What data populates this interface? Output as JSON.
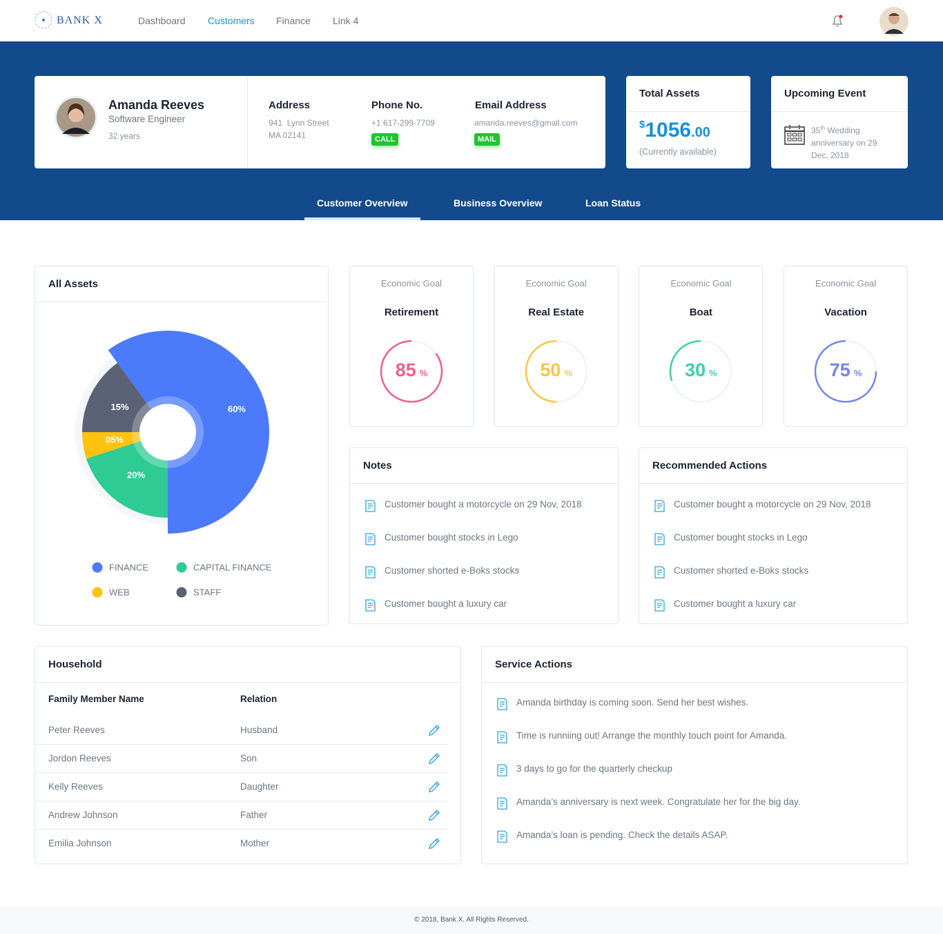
{
  "nav": {
    "brand": "BANK X",
    "links": [
      "Dashboard",
      "Customers",
      "Finance",
      "Link 4"
    ]
  },
  "profile": {
    "name": "Amanda Reeves",
    "role": "Software Engineer",
    "age": "32 years",
    "address": {
      "label": "Address",
      "lines": [
        "941  Lynn Street",
        "MA 02141"
      ]
    },
    "phone": {
      "label": "Phone No.",
      "value": "+1 617-299-7709",
      "button": "CALL"
    },
    "email": {
      "label": "Email Address",
      "value": "amanda.reeves@gmail.com",
      "button": "MAIL"
    }
  },
  "total_assets": {
    "title": "Total Assets",
    "currency": "$",
    "amount": "1056",
    "decimals": ".00",
    "note": "(Currently available)"
  },
  "upcoming_event": {
    "title": "Upcoming Event",
    "ordinal": "35",
    "suffix": "th",
    "text": "Wedding anniversary on 29 Dec, 2018"
  },
  "tabs": [
    "Customer Overview",
    "Business Overview",
    "Loan Status"
  ],
  "all_assets": {
    "title": "All Assets",
    "type": "pie",
    "categories": [
      "FINANCE",
      "CAPITAL FINANCE",
      "WEB",
      "STAFF"
    ],
    "values": [
      60,
      20,
      5,
      15
    ],
    "value_labels": [
      "60%",
      "20%",
      "05%",
      "15%"
    ],
    "colors": [
      "#4b7bfb",
      "#2ecb94",
      "#ffc20e",
      "#5b6275"
    ]
  },
  "goals": [
    {
      "caption": "Economic Goal",
      "name": "Retirement",
      "value": 85,
      "unit": "%",
      "color": "#ec5f8d"
    },
    {
      "caption": "Economic Goal",
      "name": "Real Estate",
      "value": 50,
      "unit": "%",
      "color": "#f7c646"
    },
    {
      "caption": "Economic Goal",
      "name": "Boat",
      "value": 30,
      "unit": "%",
      "color": "#3fcfa4"
    },
    {
      "caption": "Economic Goal",
      "name": "Vacation",
      "value": 75,
      "unit": "%",
      "color": "#7585e6"
    }
  ],
  "notes": {
    "title": "Notes",
    "items": [
      "Customer bought a motorcycle on 29 Nov, 2018",
      "Customer bought stocks in Lego",
      "Customer shorted e-Boks stocks",
      "Customer bought a luxury car"
    ]
  },
  "recommended_actions": {
    "title": "Recommended Actions",
    "items": [
      "Customer bought a motorcycle on 29 Nov, 2018",
      "Customer bought stocks in Lego",
      "Customer shorted e-Boks stocks",
      "Customer bought a luxury car"
    ]
  },
  "household": {
    "title": "Household",
    "columns": [
      "Family Member Name",
      "Relation"
    ],
    "rows": [
      [
        "Peter Reeves",
        "Husband"
      ],
      [
        "Jordon Reeves",
        "Son"
      ],
      [
        "Kelly Reeves",
        "Daughter"
      ],
      [
        "Andrew Johnson",
        "Father"
      ],
      [
        "Emilia Johnson",
        "Mother"
      ]
    ]
  },
  "service_actions": {
    "title": "Service Actions",
    "items": [
      "Amanda birthday is coming soon. Send her best wishes.",
      "Time is runniing out! Arrange the monthly touch point for Amanda.",
      "3 days to go for the quarterly checkup",
      "Amanda’s anniversary is next week. Congratulate her for the big day.",
      "Amanda’s loan is pending. Check the details ASAP."
    ]
  },
  "footer": "© 2018, Bank X. All Rights Reserved."
}
